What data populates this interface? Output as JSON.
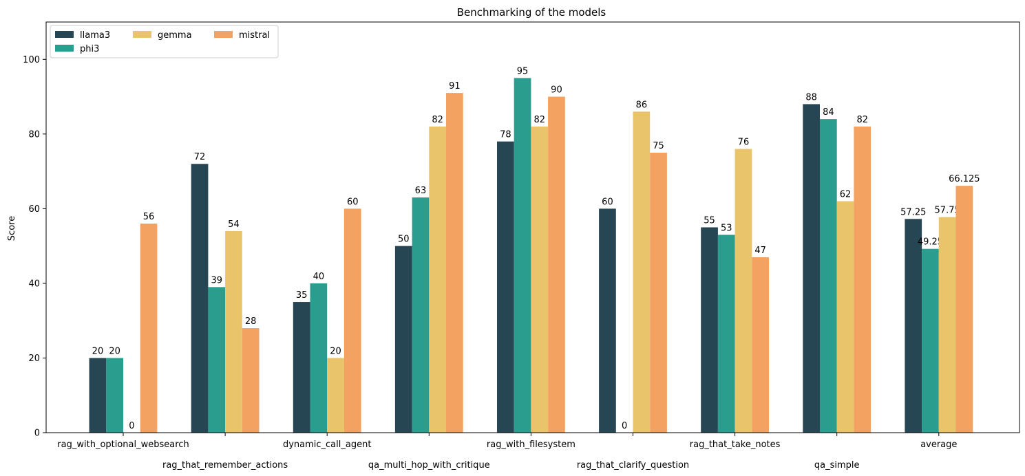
{
  "chart_data": {
    "type": "bar",
    "title": "Benchmarking of the models",
    "xlabel": "",
    "ylabel": "Score",
    "ylim": [
      0,
      110
    ],
    "yticks": [
      0,
      20,
      40,
      60,
      80,
      100
    ],
    "grid": false,
    "legend_position": "top-left",
    "categories": [
      "rag_with_optional_websearch",
      "rag_that_remember_actions",
      "dynamic_call_agent",
      "qa_multi_hop_with_critique",
      "rag_with_filesystem",
      "rag_that_clarify_question",
      "rag_that_take_notes",
      "qa_simple",
      "average"
    ],
    "series": [
      {
        "name": "llama3",
        "color": "#264653",
        "values": [
          20,
          72,
          35,
          50,
          78,
          60,
          55,
          88,
          57.25
        ]
      },
      {
        "name": "phi3",
        "color": "#2a9d8f",
        "values": [
          20,
          39,
          40,
          63,
          95,
          0,
          53,
          84,
          49.25
        ]
      },
      {
        "name": "gemma",
        "color": "#e9c46a",
        "values": [
          0,
          54,
          20,
          82,
          82,
          86,
          76,
          62,
          57.75
        ]
      },
      {
        "name": "mistral",
        "color": "#f4a261",
        "values": [
          56,
          28,
          60,
          91,
          90,
          75,
          47,
          82,
          66.125
        ]
      }
    ]
  }
}
